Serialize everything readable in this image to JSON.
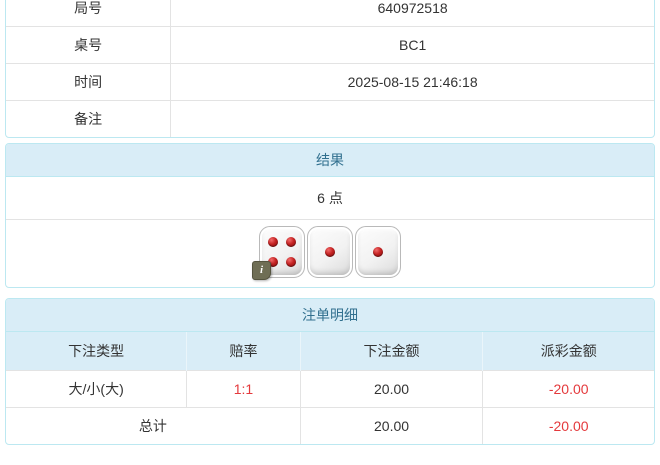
{
  "colors": {
    "panel_heading_bg": "#d9edf7",
    "panel_heading_text": "#31708f",
    "panel_border": "#bce8f1",
    "row_divider": "#e3e3e3",
    "body_text": "#333333",
    "negative_amount_red": "#e4393c",
    "dice_pip_red": "#c32222"
  },
  "game_info": {
    "rows": [
      {
        "label": "局号",
        "value": "640972518"
      },
      {
        "label": "桌号",
        "value": "BC1"
      },
      {
        "label": "时间",
        "value": "2025-08-15 21:46:18"
      },
      {
        "label": "备注",
        "value": ""
      }
    ]
  },
  "result_panel": {
    "title": "结果",
    "points": "6 点",
    "dice": [
      4,
      1,
      1
    ],
    "info_badge": "i"
  },
  "bets_panel": {
    "title": "注单明细",
    "headers": [
      "下注类型",
      "赔率",
      "下注金额",
      "派彩金额"
    ],
    "rows": [
      {
        "bet_type": "大/小(大)",
        "odds": "1:1",
        "bet_amount": "20.00",
        "payout": "-20.00"
      }
    ],
    "total": {
      "label": "总计",
      "bet_amount": "20.00",
      "payout": "-20.00"
    }
  }
}
